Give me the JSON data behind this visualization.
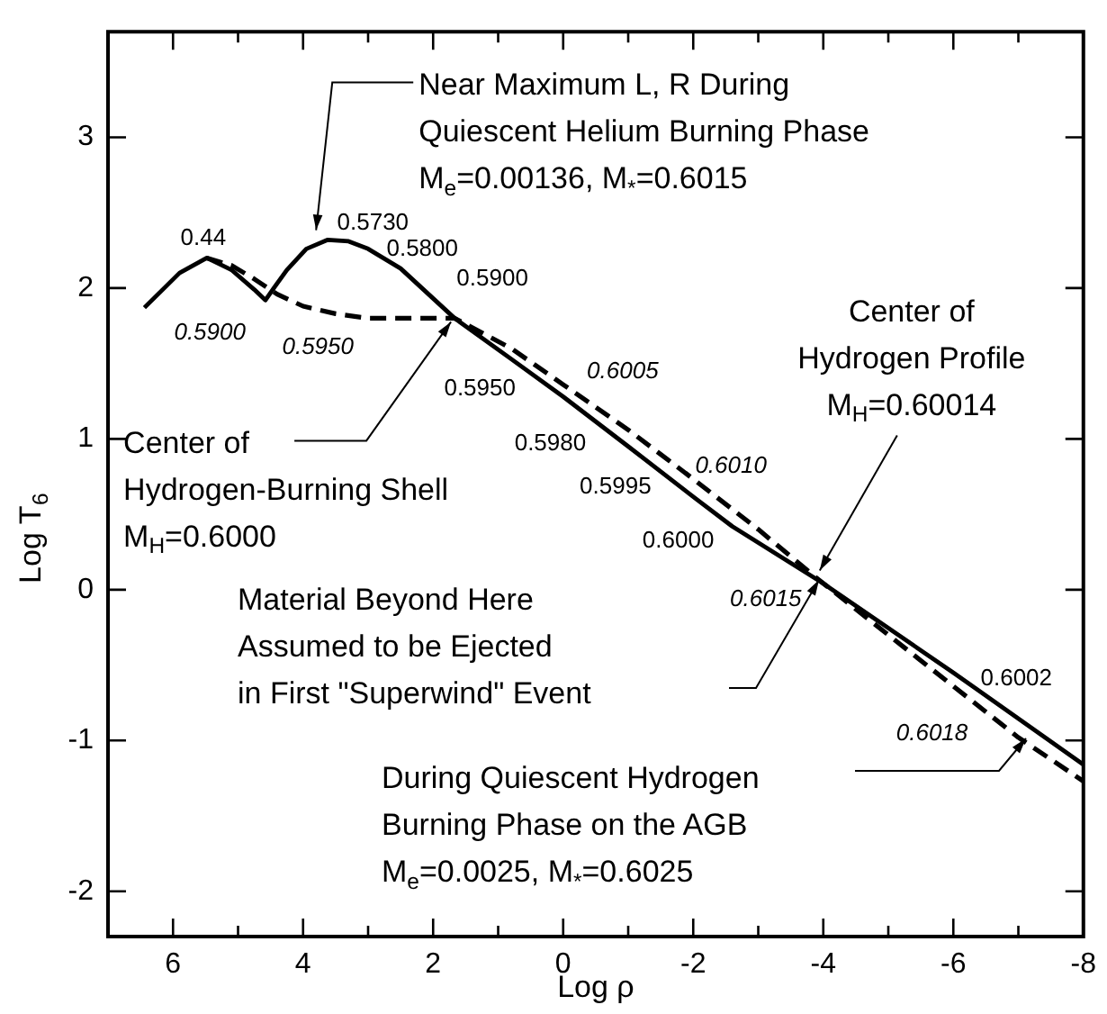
{
  "chart_data": {
    "type": "line",
    "xlabel": "Log ρ",
    "ylabel": "Log T$_{6}$",
    "xlim": [
      7,
      -8
    ],
    "xticks": [
      {
        "value": 7,
        "label": null
      },
      6,
      {
        "value": 5,
        "label": null
      },
      4,
      {
        "value": 3,
        "label": null
      },
      2,
      {
        "value": 1,
        "label": null
      },
      0,
      {
        "value": -1,
        "label": null
      },
      -2,
      {
        "value": -3,
        "label": null
      },
      -4,
      {
        "value": -5,
        "label": null
      },
      -6,
      {
        "value": -7,
        "label": null
      },
      -8
    ],
    "ylim": [
      -2.3,
      3.7
    ],
    "yticks": [
      -2,
      -1,
      0,
      1,
      2,
      3
    ],
    "grid": false,
    "legend": false,
    "marker": "none",
    "series": [
      {
        "color": "#000000",
        "line_style": "solid",
        "x": [
          6.44,
          5.9,
          5.48,
          5.1,
          4.75,
          4.58,
          4.45,
          4.25,
          3.95,
          3.62,
          3.3,
          3.0,
          2.5,
          1.67,
          0.8,
          0.0,
          -1.0,
          -2.05,
          -2.6,
          -3.97,
          -6.0,
          -8.0
        ],
        "values": [
          1.87,
          2.1,
          2.2,
          2.12,
          1.99,
          1.92,
          2.0,
          2.12,
          2.26,
          2.32,
          2.31,
          2.26,
          2.13,
          1.8,
          1.53,
          1.28,
          0.95,
          0.6,
          0.42,
          0.05,
          -0.55,
          -1.16
        ]
      },
      {
        "color": "#000000",
        "line_style": "dashed",
        "x": [
          5.48,
          5.1,
          4.75,
          4.4,
          4.0,
          3.5,
          3.0,
          2.5,
          1.67,
          0.8,
          0,
          -1,
          -1.86,
          -3.0,
          -3.89,
          -5,
          -7.0,
          -8.0
        ],
        "values": [
          2.2,
          2.15,
          2.06,
          1.96,
          1.88,
          1.83,
          1.8,
          1.8,
          1.8,
          1.6,
          1.36,
          1.06,
          0.78,
          0.4,
          0.08,
          -0.3,
          -0.98,
          -1.27
        ]
      }
    ],
    "annotations": [
      {
        "text": "0.44",
        "x": 5.48,
        "y": 2.2
      },
      {
        "text": "0.5730",
        "x": 3.56,
        "y": 2.32
      },
      {
        "text": "0.5800",
        "x": 2.8,
        "y": 2.22
      },
      {
        "text": "0.5900",
        "x": 1.67,
        "y": 1.8
      },
      {
        "text": "0.5950",
        "x": 0.7,
        "y": 1.5
      },
      {
        "text": "0.5980",
        "x": -0.66,
        "y": 1.05
      },
      {
        "text": "0.5995",
        "x": -2.05,
        "y": 0.6
      },
      {
        "text": "0.6000",
        "x": -2.6,
        "y": 0.42
      },
      {
        "text": "0.5900",
        "x": 4.52,
        "y": 2.0
      },
      {
        "text": "0.5950",
        "x": 3.8,
        "y": 1.88
      },
      {
        "text": "0.6005",
        "x": -0.14,
        "y": 1.4
      },
      {
        "text": "0.6010",
        "x": -1.86,
        "y": 0.78
      },
      {
        "text": "0.6015",
        "x": -3.89,
        "y": 0.08
      },
      {
        "text": "0.6002",
        "x": -6.36,
        "y": -0.65
      },
      {
        "text": "0.6018",
        "x": -7.0,
        "y": -0.98
      },
      {
        "text": "Near Maximum L, R During\nQuiescent Helium Burning Phase\nM$_{e}$=0.00136, M$_{*}$=0.6015",
        "x": 3.8,
        "y": 2.36
      },
      {
        "text": "Center of\nHydrogen-Burning Shell\nM$_{H}$=0.6000",
        "x": 1.67,
        "y": 1.8
      },
      {
        "text": "Center of\nHydrogen Profile\nM$_{H}$=0.60014",
        "x": -3.89,
        "y": 0.08
      },
      "Material Beyond Here\nAssumed to be Ejected\nin First \"Superwind\" Event",
      "During Quiescent Hydrogen\nBurning Phase on the AGB\nM$_{e}$=0.0025, M$_{*}$=0.6025"
    ]
  }
}
